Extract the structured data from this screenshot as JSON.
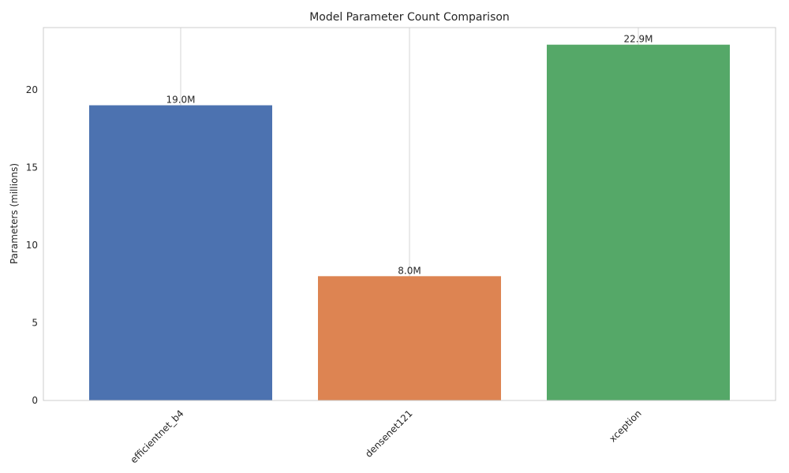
{
  "chart_data": {
    "type": "bar",
    "title": "Model Parameter Count Comparison",
    "xlabel": "",
    "ylabel": "Parameters (millions)",
    "categories": [
      "efficientnet_b4",
      "densenet121",
      "xception"
    ],
    "values": [
      19.0,
      8.0,
      22.9
    ],
    "value_labels": [
      "19.0M",
      "8.0M",
      "22.9M"
    ],
    "colors": [
      "#4c72b0",
      "#dd8452",
      "#55a868"
    ],
    "ylim": [
      0,
      24
    ],
    "yticks": [
      0,
      5,
      10,
      15,
      20
    ],
    "ytick_labels": [
      "0",
      "5",
      "10",
      "15",
      "20"
    ],
    "grid": true,
    "legend": "none"
  }
}
